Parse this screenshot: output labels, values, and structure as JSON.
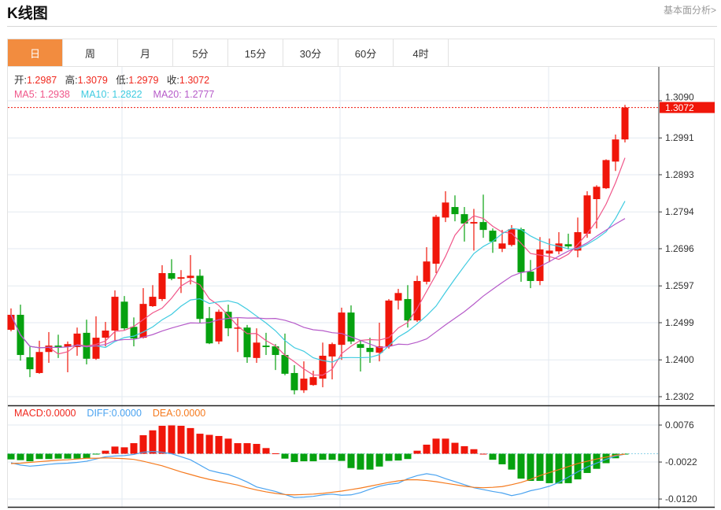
{
  "header": {
    "title": "K线图",
    "more_link": "基本面分析>"
  },
  "tabs": [
    {
      "label": "日",
      "active": true
    },
    {
      "label": "周"
    },
    {
      "label": "月"
    },
    {
      "label": "5分"
    },
    {
      "label": "15分"
    },
    {
      "label": "30分"
    },
    {
      "label": "60分"
    },
    {
      "label": "4时"
    }
  ],
  "ohlc_legend": {
    "open_label": "开:",
    "open": "1.2987",
    "high_label": "高:",
    "high": "1.3079",
    "low_label": "低:",
    "low": "1.2979",
    "close_label": "收:",
    "close": "1.3072"
  },
  "ma_legend": {
    "ma5": "MA5: 1.2938",
    "ma10": "MA10: 1.2822",
    "ma20": "MA20: 1.2777"
  },
  "macd_legend": {
    "macd": "MACD:0.0000",
    "diff": "DIFF:0.0000",
    "dea": "DEA:0.0000"
  },
  "colors": {
    "up": "#f0160a",
    "down": "#06a10f",
    "ma5": "#f0568a",
    "ma10": "#3fcbe0",
    "ma20": "#b65bc9",
    "diff": "#4aa3f0",
    "dea": "#f57a1e",
    "tab_active": "#f28c3f"
  },
  "chart_data": {
    "type": "candlestick",
    "current_price": "1.3072",
    "price_axis": {
      "ticks": [
        "1.3090",
        "1.2991",
        "1.2893",
        "1.2794",
        "1.2696",
        "1.2597",
        "1.2499",
        "1.2400",
        "1.2302"
      ],
      "ylim": [
        1.2302,
        1.309
      ]
    },
    "candles": [
      [
        1.248,
        1.2537,
        1.2476,
        1.252
      ],
      [
        1.252,
        1.2547,
        1.2398,
        1.2413
      ],
      [
        1.2407,
        1.2438,
        1.2354,
        1.2375
      ],
      [
        1.2365,
        1.2451,
        1.2363,
        1.2421
      ],
      [
        1.2421,
        1.2474,
        1.2392,
        1.2438
      ],
      [
        1.2438,
        1.2467,
        1.2405,
        1.2432
      ],
      [
        1.2434,
        1.2449,
        1.2367,
        1.2442
      ],
      [
        1.2434,
        1.2486,
        1.2411,
        1.247
      ],
      [
        1.2472,
        1.2507,
        1.2388,
        1.2403
      ],
      [
        1.2403,
        1.2516,
        1.24,
        1.2459
      ],
      [
        1.2459,
        1.2501,
        1.2436,
        1.2478
      ],
      [
        1.2478,
        1.2585,
        1.2451,
        1.2568
      ],
      [
        1.2555,
        1.257,
        1.2478,
        1.2484
      ],
      [
        1.2488,
        1.2513,
        1.2436,
        1.2457
      ],
      [
        1.2459,
        1.2591,
        1.2457,
        1.2549
      ],
      [
        1.2543,
        1.2599,
        1.2541,
        1.2568
      ],
      [
        1.2562,
        1.2652,
        1.2557,
        1.2631
      ],
      [
        1.2631,
        1.2668,
        1.2612,
        1.2616
      ],
      [
        1.2616,
        1.2639,
        1.2578,
        1.262
      ],
      [
        1.2618,
        1.2679,
        1.2601,
        1.2624
      ],
      [
        1.2624,
        1.2641,
        1.2497,
        1.2509
      ],
      [
        1.2511,
        1.2541,
        1.2442,
        1.2444
      ],
      [
        1.2449,
        1.2534,
        1.2442,
        1.2528
      ],
      [
        1.2528,
        1.2547,
        1.2463,
        1.2484
      ],
      [
        1.2484,
        1.2511,
        1.2421,
        1.2486
      ],
      [
        1.2486,
        1.2493,
        1.2392,
        1.2407
      ],
      [
        1.2405,
        1.2484,
        1.2392,
        1.2446
      ],
      [
        1.2438,
        1.2472,
        1.2413,
        1.2434
      ],
      [
        1.2436,
        1.2442,
        1.2373,
        1.2413
      ],
      [
        1.2413,
        1.247,
        1.2359,
        1.2363
      ],
      [
        1.2365,
        1.2386,
        1.2308,
        1.2319
      ],
      [
        1.2319,
        1.2396,
        1.2312,
        1.235
      ],
      [
        1.2333,
        1.2371,
        1.2331,
        1.2354
      ],
      [
        1.235,
        1.2446,
        1.2327,
        1.2411
      ],
      [
        1.2409,
        1.2446,
        1.2348,
        1.2442
      ],
      [
        1.244,
        1.2539,
        1.24,
        1.2526
      ],
      [
        1.2526,
        1.2545,
        1.2442,
        1.2449
      ],
      [
        1.2442,
        1.2451,
        1.2369,
        1.2432
      ],
      [
        1.2432,
        1.2459,
        1.2392,
        1.2421
      ],
      [
        1.2419,
        1.2499,
        1.2396,
        1.2436
      ],
      [
        1.2436,
        1.2562,
        1.243,
        1.2558
      ],
      [
        1.2558,
        1.2589,
        1.2534,
        1.2578
      ],
      [
        1.2562,
        1.2599,
        1.2486,
        1.2505
      ],
      [
        1.2505,
        1.2624,
        1.2501,
        1.261
      ],
      [
        1.2608,
        1.27,
        1.2601,
        1.2662
      ],
      [
        1.2656,
        1.2786,
        1.2631,
        1.2781
      ],
      [
        1.2779,
        1.2849,
        1.2767,
        1.2819
      ],
      [
        1.2807,
        1.2838,
        1.2769,
        1.2788
      ],
      [
        1.2788,
        1.2807,
        1.2715,
        1.2763
      ],
      [
        1.2763,
        1.2802,
        1.2691,
        1.2767
      ],
      [
        1.2767,
        1.284,
        1.2725,
        1.2746
      ],
      [
        1.2744,
        1.275,
        1.2685,
        1.2715
      ],
      [
        1.2696,
        1.2746,
        1.2687,
        1.271
      ],
      [
        1.2706,
        1.2759,
        1.2702,
        1.2748
      ],
      [
        1.2748,
        1.2752,
        1.2608,
        1.2633
      ],
      [
        1.2635,
        1.2666,
        1.2591,
        1.261
      ],
      [
        1.261,
        1.2727,
        1.2599,
        1.2694
      ],
      [
        1.2683,
        1.2723,
        1.266,
        1.2691
      ],
      [
        1.2689,
        1.274,
        1.2681,
        1.271
      ],
      [
        1.2708,
        1.2736,
        1.2694,
        1.2702
      ],
      [
        1.2691,
        1.2779,
        1.2673,
        1.274
      ],
      [
        1.2736,
        1.2849,
        1.2725,
        1.2838
      ],
      [
        1.2828,
        1.2865,
        1.275,
        1.2861
      ],
      [
        1.2857,
        1.2934,
        1.2855,
        1.2932
      ],
      [
        1.2928,
        1.3,
        1.2903,
        1.2987
      ],
      [
        1.2987,
        1.3079,
        1.2979,
        1.3072
      ]
    ],
    "macd_axis": {
      "ticks": [
        "0.0076",
        "-0.0022",
        "-0.0120"
      ],
      "ylim": [
        -0.013,
        0.01
      ]
    },
    "macd_hist": [
      -0.0015,
      -0.0017,
      -0.002,
      -0.0014,
      -0.0014,
      -0.0013,
      -0.0013,
      -0.0013,
      -0.0012,
      -0.0001,
      0.0008,
      0.0019,
      0.0017,
      0.0028,
      0.0049,
      0.0062,
      0.0074,
      0.0075,
      0.0074,
      0.0068,
      0.0053,
      0.005,
      0.0047,
      0.004,
      0.0028,
      0.0028,
      0.0026,
      0.0015,
      0.0001,
      -0.0013,
      -0.0022,
      -0.002,
      -0.002,
      -0.0016,
      -0.0016,
      -0.0019,
      -0.0038,
      -0.0042,
      -0.0042,
      -0.0034,
      -0.0019,
      -0.0018,
      -0.0014,
      0.0008,
      0.0024,
      0.004,
      0.004,
      0.0029,
      0.002,
      0.0012,
      0.0,
      -0.0016,
      -0.0028,
      -0.0042,
      -0.0066,
      -0.0072,
      -0.0072,
      -0.0078,
      -0.0079,
      -0.0078,
      -0.0068,
      -0.0051,
      -0.004,
      -0.0025,
      -0.0012,
      -0.0001
    ],
    "diff": [
      -0.0024,
      -0.003,
      -0.0033,
      -0.0031,
      -0.0028,
      -0.0026,
      -0.0025,
      -0.0023,
      -0.002,
      -0.0014,
      -0.0008,
      -0.0006,
      -0.0005,
      -0.0002,
      0.0004,
      0.0006,
      0.0004,
      0.0,
      -0.0008,
      -0.0016,
      -0.003,
      -0.0044,
      -0.005,
      -0.0055,
      -0.0064,
      -0.0075,
      -0.0088,
      -0.0094,
      -0.01,
      -0.0108,
      -0.0116,
      -0.0115,
      -0.0113,
      -0.0109,
      -0.0107,
      -0.011,
      -0.0109,
      -0.0103,
      -0.0094,
      -0.0086,
      -0.0081,
      -0.0078,
      -0.0066,
      -0.0058,
      -0.0053,
      -0.0057,
      -0.0066,
      -0.0074,
      -0.0082,
      -0.009,
      -0.0095,
      -0.01,
      -0.0104,
      -0.0111,
      -0.0106,
      -0.0098,
      -0.0093,
      -0.0086,
      -0.0076,
      -0.0062,
      -0.0048,
      -0.0035,
      -0.0025,
      -0.0015,
      -0.0006,
      -0.0001
    ],
    "dea": [
      -0.0026,
      -0.0025,
      -0.0023,
      -0.0021,
      -0.0019,
      -0.0017,
      -0.0016,
      -0.0014,
      -0.0012,
      -0.0012,
      -0.0011,
      -0.0012,
      -0.0013,
      -0.0015,
      -0.002,
      -0.0026,
      -0.0032,
      -0.004,
      -0.0048,
      -0.0055,
      -0.0062,
      -0.0068,
      -0.0073,
      -0.0078,
      -0.0083,
      -0.009,
      -0.0096,
      -0.0101,
      -0.0105,
      -0.0108,
      -0.0109,
      -0.0108,
      -0.0107,
      -0.0105,
      -0.0102,
      -0.0099,
      -0.0095,
      -0.0091,
      -0.0086,
      -0.0081,
      -0.0076,
      -0.0072,
      -0.0069,
      -0.0069,
      -0.0071,
      -0.0074,
      -0.0078,
      -0.0082,
      -0.0086,
      -0.0089,
      -0.009,
      -0.0089,
      -0.0087,
      -0.0082,
      -0.0076,
      -0.0068,
      -0.0058,
      -0.005,
      -0.0042,
      -0.0034,
      -0.0026,
      -0.002,
      -0.0014,
      -0.0009,
      -0.0004,
      -0.0001
    ]
  }
}
